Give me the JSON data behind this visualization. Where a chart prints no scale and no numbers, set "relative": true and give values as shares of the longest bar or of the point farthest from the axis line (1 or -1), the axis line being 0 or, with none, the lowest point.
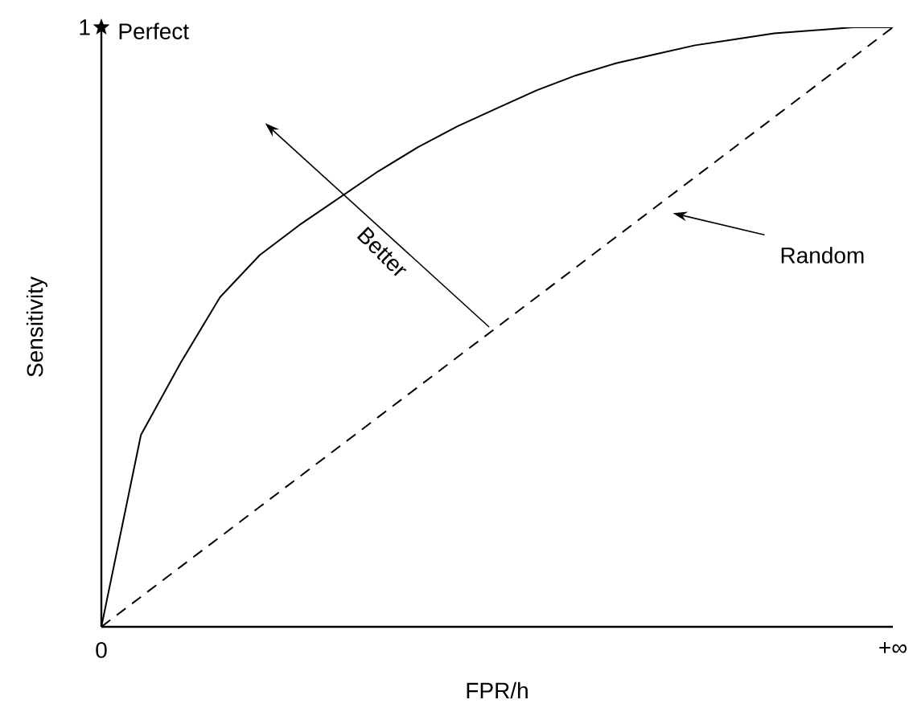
{
  "chart_data": {
    "type": "line",
    "xlabel": "FPR/h",
    "ylabel": "Sensitivity",
    "relative": true,
    "categories": [
      null,
      null,
      null,
      null,
      null,
      null,
      null,
      null,
      null,
      null,
      null,
      null,
      null,
      null,
      null,
      null,
      null,
      null,
      null,
      null,
      null
    ],
    "series": [
      {
        "color": "#000000",
        "line_style": "solid",
        "values": [
          0,
          0.32,
          0.44,
          0.55,
          0.62,
          0.67,
          0.715,
          0.76,
          0.8,
          0.835,
          0.865,
          0.895,
          0.92,
          0.94,
          0.955,
          0.97,
          0.98,
          0.99,
          0.995,
          1,
          1
        ]
      },
      {
        "color": "#000000",
        "line_style": "dashed",
        "values": [
          0,
          0.05,
          0.1,
          0.15,
          0.2,
          0.25,
          0.3,
          0.35,
          0.4,
          0.45,
          0.5,
          0.55,
          0.6,
          0.65,
          0.7,
          0.75,
          0.8,
          0.85,
          0.9,
          0.95,
          1
        ]
      }
    ],
    "annotations": [
      "Perfect",
      "Random",
      "Better",
      "1",
      "0",
      "+∞"
    ]
  }
}
